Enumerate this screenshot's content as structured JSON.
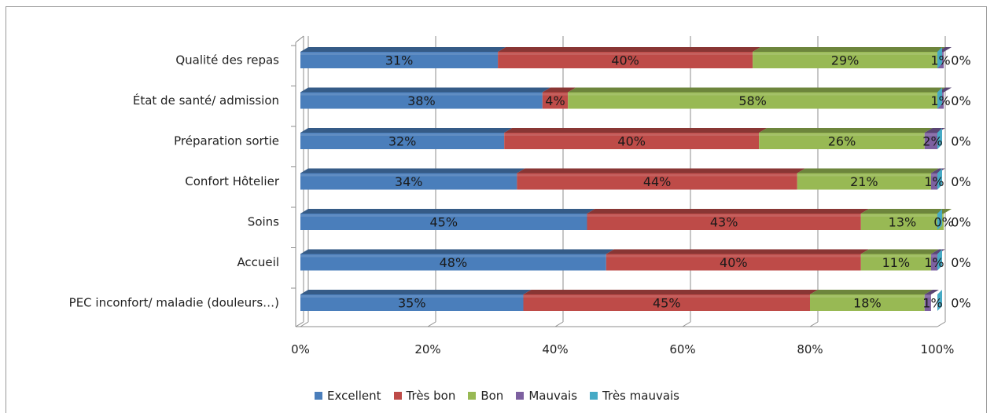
{
  "chart_data": {
    "type": "bar",
    "orientation": "horizontal",
    "stacked": "percent",
    "style": "3d",
    "categories": [
      "Qualité des repas",
      "État de santé/ admission",
      "Préparation sortie",
      "Confort Hôtelier",
      "Soins",
      "Accueil",
      "PEC inconfort/ maladie (douleurs…)"
    ],
    "series": [
      {
        "name": "Excellent",
        "color": "#4a7ebb",
        "values": [
          31,
          38,
          32,
          34,
          45,
          48,
          35
        ]
      },
      {
        "name": "Très bon",
        "color": "#be4b48",
        "values": [
          40,
          4,
          40,
          44,
          43,
          40,
          45
        ]
      },
      {
        "name": "Bon",
        "color": "#98b954",
        "values": [
          29,
          58,
          26,
          21,
          13,
          11,
          18
        ]
      },
      {
        "name": "Mauvais",
        "color": "#7d60a0",
        "values": [
          1,
          1,
          2,
          1,
          0,
          1,
          1
        ]
      },
      {
        "name": "Très mauvais",
        "color": "#46aac5",
        "values": [
          0,
          0,
          0,
          0,
          0,
          0,
          0
        ]
      }
    ],
    "data_labels": [
      [
        "31%",
        "40%",
        "29%",
        "1%",
        "0%"
      ],
      [
        "38%",
        "4%",
        "58%",
        "1%",
        "0%"
      ],
      [
        "32%",
        "40%",
        "26%",
        "2%",
        "0%"
      ],
      [
        "34%",
        "44%",
        "21%",
        "1%",
        "0%"
      ],
      [
        "45%",
        "43%",
        "13%",
        "0%",
        "0%"
      ],
      [
        "48%",
        "40%",
        "11%",
        "1%",
        "0%"
      ],
      [
        "35%",
        "45%",
        "18%",
        "1%",
        "0%"
      ]
    ],
    "xaxis": {
      "min": 0,
      "max": 100,
      "ticks": [
        0,
        20,
        40,
        60,
        80,
        100
      ],
      "tick_labels": [
        "0%",
        "20%",
        "40%",
        "60%",
        "80%",
        "100%"
      ]
    },
    "grid": "vertical",
    "legend_position": "bottom"
  }
}
